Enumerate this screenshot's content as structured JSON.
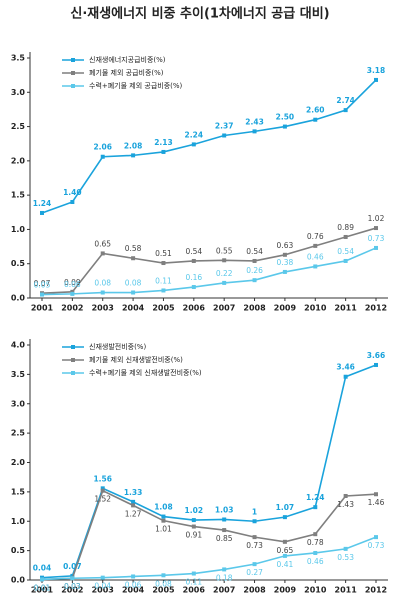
{
  "title": "신·재생에너지 비중 추이(1차에너지 공급 대비)",
  "chart_data": [
    {
      "type": "line",
      "categories": [
        "2001",
        "2002",
        "2003",
        "2004",
        "2005",
        "2006",
        "2007",
        "2008",
        "2009",
        "2010",
        "2011",
        "2012"
      ],
      "ylim": [
        0,
        3.5
      ],
      "yticks": [
        {
          "value": 0,
          "label": "0.0"
        },
        0.5,
        {
          "value": 1,
          "label": "1.0"
        },
        1.5,
        {
          "value": 2,
          "label": "2.0"
        },
        2.5,
        {
          "value": 3,
          "label": "3.0"
        },
        3.5
      ],
      "grid": false,
      "legend": "upper left",
      "series": [
        {
          "name": "신재생에너지공급비중(%)",
          "color": "#1aa3dc",
          "values": [
            1.24,
            1.4,
            2.06,
            2.08,
            2.13,
            2.24,
            2.37,
            2.43,
            2.5,
            2.6,
            2.74,
            3.18
          ],
          "value_labels": [
            "1.24",
            "1.40",
            "2.06",
            "2.08",
            "2.13",
            "2.24",
            "2.37",
            "2.43",
            "2.50",
            "2.60",
            "2.74",
            "3.18"
          ]
        },
        {
          "name": "폐기물 제외 공급비중(%)",
          "color": "#7f7f7f",
          "values": [
            0.07,
            0.09,
            0.65,
            0.58,
            0.51,
            0.54,
            0.55,
            0.54,
            0.63,
            0.76,
            0.89,
            1.02
          ],
          "value_labels": [
            "0.07",
            "0.09",
            "0.65",
            "0.58",
            "0.51",
            "0.54",
            "0.55",
            "0.54",
            "0.63",
            "0.76",
            "0.89",
            "1.02"
          ]
        },
        {
          "name": "수력+폐기물 제외 공급비중(%)",
          "color": "#5bc8ea",
          "values": [
            0.05,
            0.06,
            0.08,
            0.08,
            0.11,
            0.16,
            0.22,
            0.26,
            0.38,
            0.46,
            0.54,
            0.73
          ],
          "value_labels": [
            "0.05",
            "0.06",
            "0.08",
            "0.08",
            "0.11",
            "0.16",
            "0.22",
            "0.26",
            "0.38",
            "0.46",
            "0.54",
            "0.73"
          ]
        }
      ]
    },
    {
      "type": "line",
      "categories": [
        "2001",
        "2002",
        "2003",
        "2004",
        "2005",
        "2006",
        "2007",
        "2008",
        "2009",
        "2010",
        "2011",
        "2012"
      ],
      "ylim": [
        0,
        4
      ],
      "yticks": [
        {
          "value": 0,
          "label": "0.0"
        },
        0.5,
        {
          "value": 1,
          "label": "1.0"
        },
        1.5,
        {
          "value": 2,
          "label": "2.0"
        },
        2.5,
        {
          "value": 3,
          "label": "3.0"
        },
        3.5,
        {
          "value": 4,
          "label": "4.0"
        }
      ],
      "grid": false,
      "legend": "upper left",
      "series": [
        {
          "name": "신재생발전비중(%)",
          "color": "#1aa3dc",
          "values": [
            0.04,
            0.07,
            1.56,
            1.33,
            1.08,
            1.02,
            1.03,
            1,
            1.07,
            1.24,
            3.46,
            3.66
          ]
        },
        {
          "name": "폐기물 제외 신재생발전비중(%)",
          "color": "#7f7f7f",
          "values": [
            0.01,
            0.03,
            1.52,
            1.27,
            1.01,
            0.91,
            0.85,
            0.73,
            0.65,
            0.78,
            1.43,
            1.46
          ]
        },
        {
          "name": "수력+폐기물 제외 신재생발전비중(%)",
          "color": "#5bc8ea",
          "values": [
            0.01,
            0.03,
            0.04,
            0.06,
            0.08,
            0.11,
            0.18,
            0.27,
            0.41,
            0.46,
            0.53,
            0.73
          ]
        }
      ]
    }
  ]
}
